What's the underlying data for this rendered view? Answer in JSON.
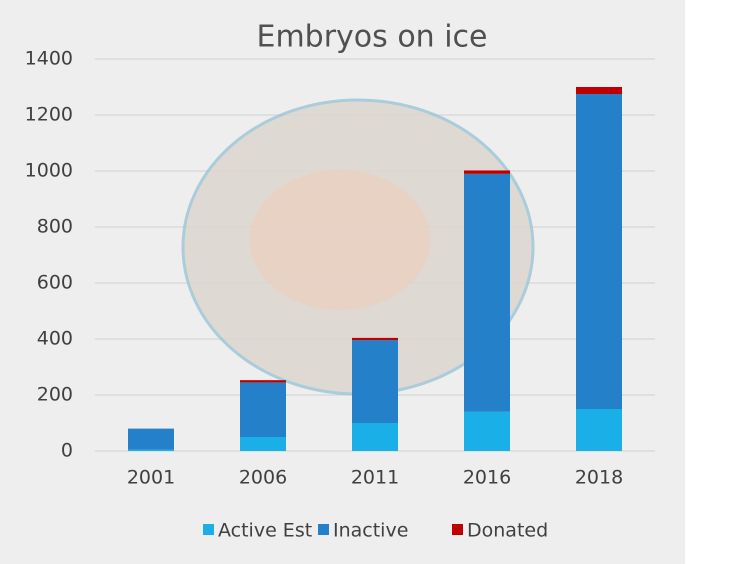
{
  "chart_data": {
    "type": "stacked_bar",
    "title": "Embryos on ice",
    "categories": [
      "2001",
      "2006",
      "2011",
      "2016",
      "2018"
    ],
    "series": [
      {
        "name": "Active Est",
        "color": "#1aafe6",
        "values": [
          5,
          50,
          100,
          140,
          150
        ]
      },
      {
        "name": "Inactive",
        "color": "#2480c8",
        "values": [
          75,
          195,
          296,
          850,
          1125
        ]
      },
      {
        "name": "Donated",
        "color": "#c00000",
        "values": [
          0,
          8,
          8,
          12,
          25
        ]
      }
    ],
    "ylim": [
      0,
      1400
    ],
    "yticks": [
      0,
      200,
      400,
      600,
      800,
      1000,
      1200,
      1400
    ],
    "grid": true,
    "legend": "bottom"
  }
}
